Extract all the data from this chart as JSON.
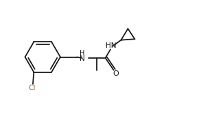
{
  "bg_color": "#ffffff",
  "line_color": "#1a1a1a",
  "cl_color": "#8B6914",
  "o_color": "#1a1a1a",
  "figsize": [
    2.9,
    1.67
  ],
  "dpi": 100,
  "lw": 1.3,
  "label_Cl": "Cl",
  "label_O": "O",
  "label_NH_amide": "HN",
  "label_HN_amine": "HN",
  "xlim": [
    0,
    10
  ],
  "ylim": [
    0,
    5.8
  ]
}
